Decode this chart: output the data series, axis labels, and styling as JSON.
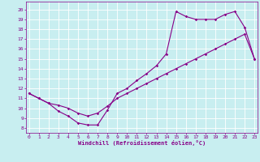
{
  "xlabel": "Windchill (Refroidissement éolien,°C)",
  "bg_color": "#c8eef0",
  "grid_color": "#ffffff",
  "line_color": "#880088",
  "x_ticks": [
    0,
    1,
    2,
    3,
    4,
    5,
    6,
    7,
    8,
    9,
    10,
    11,
    12,
    13,
    14,
    15,
    16,
    17,
    18,
    19,
    20,
    21,
    22,
    23
  ],
  "y_ticks": [
    8,
    9,
    10,
    11,
    12,
    13,
    14,
    15,
    16,
    17,
    18,
    19,
    20
  ],
  "ylim": [
    7.5,
    20.8
  ],
  "xlim": [
    -0.3,
    23.3
  ],
  "curve_x": [
    0,
    1,
    2,
    3,
    4,
    5,
    6,
    7,
    8,
    9,
    10,
    11,
    12,
    13,
    14,
    15,
    16,
    17,
    18,
    19,
    20,
    21,
    22,
    23
  ],
  "curve_y": [
    11.5,
    11.0,
    10.5,
    9.7,
    9.2,
    8.5,
    8.3,
    8.3,
    9.8,
    11.5,
    12.0,
    12.8,
    13.5,
    14.3,
    15.5,
    19.8,
    19.3,
    19.0,
    19.0,
    19.0,
    19.5,
    19.8,
    18.2,
    15.0
  ],
  "diag_x": [
    0,
    1,
    2,
    3,
    4,
    5,
    6,
    7,
    8,
    9,
    10,
    11,
    12,
    13,
    14,
    15,
    16,
    17,
    18,
    19,
    20,
    21,
    22,
    23
  ],
  "diag_y": [
    11.5,
    11.0,
    10.5,
    10.3,
    10.0,
    9.5,
    9.2,
    9.5,
    10.2,
    11.0,
    11.5,
    12.0,
    12.5,
    13.0,
    13.5,
    14.0,
    14.5,
    15.0,
    15.5,
    16.0,
    16.5,
    17.0,
    17.5,
    15.0
  ]
}
